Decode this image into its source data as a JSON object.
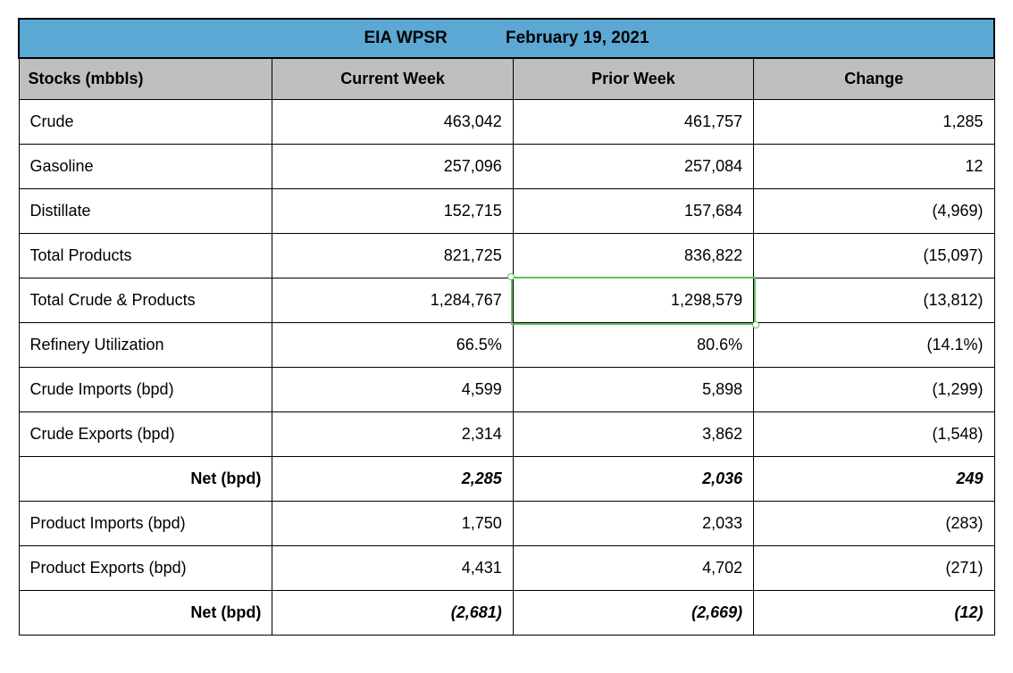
{
  "title": {
    "left": "EIA WPSR",
    "right": "February 19, 2021"
  },
  "columns": {
    "label": "Stocks (mbbls)",
    "current": "Current Week",
    "prior": "Prior Week",
    "change": "Change"
  },
  "rows": [
    {
      "label": "Crude",
      "current": "463,042",
      "prior": "461,757",
      "change": "1,285",
      "bold": false
    },
    {
      "label": "Gasoline",
      "current": "257,096",
      "prior": "257,084",
      "change": "12",
      "bold": false
    },
    {
      "label": "Distillate",
      "current": "152,715",
      "prior": "157,684",
      "change": "(4,969)",
      "bold": false
    },
    {
      "label": "Total Products",
      "current": "821,725",
      "prior": "836,822",
      "change": "(15,097)",
      "bold": false
    },
    {
      "label": "Total Crude & Products",
      "current": "1,284,767",
      "prior": "1,298,579",
      "change": "(13,812)",
      "bold": false
    },
    {
      "label": "Refinery Utilization",
      "current": "66.5%",
      "prior": "80.6%",
      "change": "(14.1%)",
      "bold": false
    },
    {
      "label": "Crude Imports (bpd)",
      "current": "4,599",
      "prior": "5,898",
      "change": "(1,299)",
      "bold": false
    },
    {
      "label": "Crude Exports (bpd)",
      "current": "2,314",
      "prior": "3,862",
      "change": "(1,548)",
      "bold": false
    },
    {
      "label": "Net (bpd)",
      "current": "2,285",
      "prior": "2,036",
      "change": "249",
      "bold": true
    },
    {
      "label": "Product Imports (bpd)",
      "current": "1,750",
      "prior": "2,033",
      "change": "(283)",
      "bold": false
    },
    {
      "label": "Product Exports (bpd)",
      "current": "4,431",
      "prior": "4,702",
      "change": "(271)",
      "bold": false
    },
    {
      "label": "Net (bpd)",
      "current": "(2,681)",
      "prior": "(2,669)",
      "change": "(12)",
      "bold": true
    }
  ],
  "selection": {
    "row_index": 4,
    "col_key": "prior",
    "colors": {
      "border": "#5fbf5f",
      "handle_bg": "#ffffff"
    }
  },
  "style": {
    "title_bg": "#5ba8d4",
    "header_bg": "#bfbfbf",
    "border_color": "#000000",
    "font_family": "Arial, Helvetica, sans-serif",
    "font_size_title": 19,
    "font_size_header": 18,
    "font_size_cell": 18
  }
}
